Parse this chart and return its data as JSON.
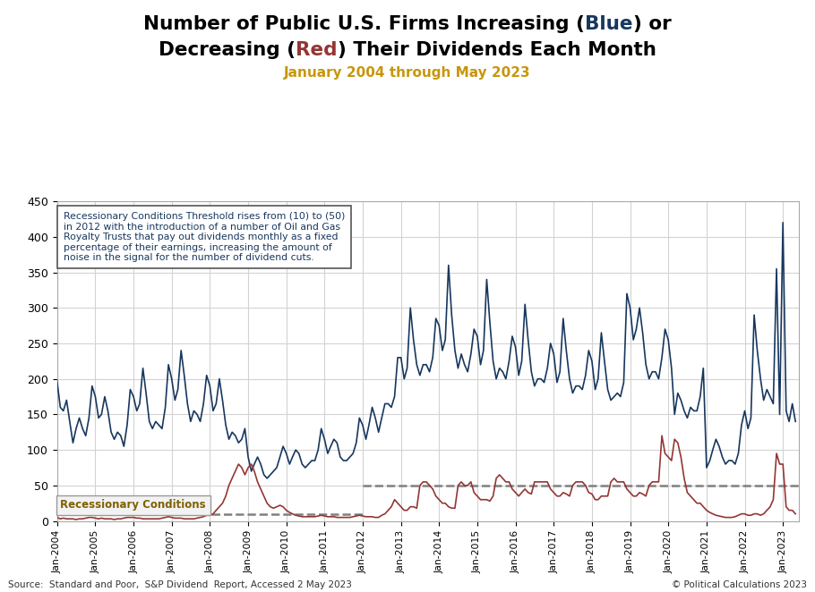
{
  "title_line1_pre": "Number of Public U.S. Firms Increasing (",
  "title_blue": "Blue",
  "title_line1_post": ") or",
  "title_line2_pre": "Decreasing (",
  "title_red": "Red",
  "title_line2_post": ") Their Dividends Each Month",
  "subtitle": "January 2004 through May 2023",
  "subtitle_color": "#C8960C",
  "source_text": "Source:  Standard and Poor,  S&P Dividend  Report, Accessed 2 May 2023",
  "copyright_text": "© Political Calculations 2023",
  "blue_color": "#17375E",
  "red_color": "#943634",
  "annotation_box_text": "Recessionary Conditions Threshold rises from (10) to (50)\nin 2012 with the introduction of a number of Oil and Gas\nRoyalty Trusts that pay out dividends monthly as a fixed\npercentage of their earnings, increasing the amount of\nnoise in the signal for the number of dividend cuts.",
  "recessionary_label": "Recessionary Conditions",
  "dashed_line_color": "#808080",
  "threshold_early": 10,
  "threshold_late": 50,
  "ylim": [
    0,
    450
  ],
  "yticks": [
    0,
    50,
    100,
    150,
    200,
    250,
    300,
    350,
    400,
    450
  ],
  "background_color": "#FFFFFF",
  "grid_color": "#D3D3D3",
  "blue_data": [
    197,
    160,
    155,
    170,
    140,
    110,
    130,
    145,
    130,
    120,
    145,
    190,
    175,
    145,
    150,
    175,
    155,
    125,
    115,
    125,
    120,
    105,
    135,
    185,
    175,
    155,
    165,
    215,
    180,
    140,
    130,
    140,
    135,
    130,
    160,
    220,
    200,
    170,
    185,
    240,
    205,
    165,
    140,
    155,
    150,
    140,
    165,
    205,
    190,
    155,
    165,
    200,
    170,
    135,
    115,
    125,
    120,
    110,
    115,
    130,
    90,
    70,
    80,
    90,
    80,
    65,
    60,
    65,
    70,
    75,
    90,
    105,
    95,
    80,
    90,
    100,
    95,
    80,
    75,
    80,
    85,
    85,
    100,
    130,
    115,
    95,
    105,
    115,
    110,
    90,
    85,
    85,
    90,
    95,
    110,
    145,
    135,
    115,
    135,
    160,
    145,
    125,
    145,
    165,
    165,
    160,
    175,
    230,
    230,
    200,
    215,
    300,
    255,
    220,
    205,
    220,
    220,
    210,
    230,
    285,
    275,
    240,
    255,
    360,
    290,
    240,
    215,
    235,
    220,
    210,
    235,
    270,
    260,
    220,
    240,
    340,
    280,
    225,
    200,
    215,
    210,
    200,
    225,
    260,
    245,
    205,
    225,
    305,
    255,
    210,
    190,
    200,
    200,
    195,
    215,
    250,
    235,
    195,
    210,
    285,
    240,
    200,
    180,
    190,
    190,
    185,
    205,
    240,
    225,
    185,
    200,
    265,
    225,
    185,
    170,
    175,
    180,
    175,
    195,
    320,
    300,
    255,
    270,
    300,
    265,
    220,
    200,
    210,
    210,
    200,
    230,
    270,
    255,
    215,
    150,
    180,
    170,
    155,
    145,
    160,
    155,
    155,
    175,
    215,
    75,
    85,
    100,
    115,
    105,
    90,
    80,
    85,
    85,
    80,
    95,
    135,
    155,
    130,
    145,
    290,
    240,
    200,
    170,
    185,
    175,
    165,
    355,
    150,
    420,
    155,
    140,
    165,
    140
  ],
  "red_data": [
    5,
    3,
    4,
    3,
    3,
    3,
    2,
    3,
    3,
    4,
    5,
    5,
    4,
    3,
    4,
    3,
    3,
    3,
    2,
    3,
    3,
    4,
    5,
    5,
    5,
    4,
    4,
    3,
    3,
    3,
    3,
    3,
    3,
    4,
    5,
    6,
    5,
    4,
    4,
    4,
    3,
    3,
    3,
    3,
    4,
    5,
    6,
    8,
    8,
    10,
    15,
    20,
    25,
    35,
    50,
    60,
    70,
    80,
    75,
    65,
    75,
    80,
    70,
    55,
    45,
    35,
    25,
    20,
    18,
    20,
    22,
    20,
    15,
    12,
    10,
    8,
    7,
    6,
    6,
    6,
    6,
    6,
    7,
    8,
    7,
    6,
    6,
    6,
    5,
    5,
    5,
    5,
    5,
    6,
    7,
    8,
    7,
    6,
    6,
    6,
    5,
    5,
    8,
    10,
    15,
    20,
    30,
    25,
    20,
    15,
    15,
    20,
    20,
    18,
    50,
    55,
    55,
    50,
    45,
    35,
    30,
    25,
    25,
    20,
    18,
    18,
    50,
    55,
    50,
    50,
    55,
    40,
    35,
    30,
    30,
    30,
    28,
    35,
    60,
    65,
    60,
    55,
    55,
    45,
    40,
    35,
    40,
    45,
    40,
    38,
    55,
    55,
    55,
    55,
    55,
    45,
    40,
    35,
    35,
    40,
    38,
    35,
    50,
    55,
    55,
    55,
    50,
    40,
    38,
    30,
    30,
    35,
    35,
    35,
    55,
    60,
    55,
    55,
    55,
    45,
    40,
    35,
    35,
    40,
    38,
    35,
    50,
    55,
    55,
    55,
    120,
    95,
    90,
    85,
    115,
    110,
    90,
    60,
    40,
    35,
    30,
    25,
    25,
    20,
    15,
    12,
    10,
    8,
    7,
    6,
    5,
    5,
    5,
    6,
    8,
    10,
    10,
    8,
    8,
    10,
    10,
    8,
    10,
    15,
    20,
    30,
    95,
    80,
    80,
    20,
    15,
    15,
    10
  ]
}
